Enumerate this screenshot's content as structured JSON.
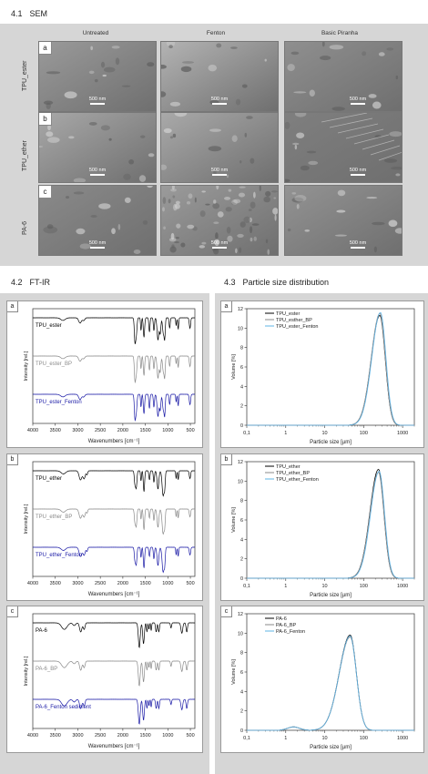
{
  "sem": {
    "title_num": "4.1",
    "title": "SEM",
    "columns": [
      "Untreated",
      "Fenton",
      "Basic Piranha"
    ],
    "rows": [
      {
        "letter": "a",
        "label": "TPU_ester"
      },
      {
        "letter": "b",
        "label": "TPU_ether"
      },
      {
        "letter": "c",
        "label": "PA-6"
      }
    ],
    "scale": "500 nm"
  },
  "ftir": {
    "title_num": "4.2",
    "title": "FT-IR",
    "ylabel": "Intensity [rel.]",
    "xlabel": "Wavenumbers [cm⁻¹]",
    "xticks": [
      "4000",
      "3500",
      "3000",
      "2500",
      "2000",
      "1500",
      "1000",
      "500"
    ],
    "panels": [
      {
        "letter": "a",
        "traces": [
          {
            "label": "TPU_ester",
            "color": "#000000"
          },
          {
            "label": "TPU_ester_BP",
            "color": "#8a8a8a"
          },
          {
            "label": "TPU_ester_Fenton",
            "color": "#1a1aa6"
          }
        ]
      },
      {
        "letter": "b",
        "traces": [
          {
            "label": "TPU_ether",
            "color": "#000000"
          },
          {
            "label": "TPU_ether_BP",
            "color": "#8a8a8a"
          },
          {
            "label": "TPU_ether_Fenton",
            "color": "#1a1aa6"
          }
        ]
      },
      {
        "letter": "c",
        "traces": [
          {
            "label": "PA-6",
            "color": "#000000"
          },
          {
            "label": "PA-6_BP",
            "color": "#8a8a8a"
          },
          {
            "label": "PA-6_Fenton sediment",
            "color": "#1a1aa6"
          }
        ]
      }
    ]
  },
  "psd": {
    "title_num": "4.3",
    "title": "Particle size distribution",
    "ylabel": "Volume [%]",
    "xlabel": "Particle size [µm]",
    "xticks": [
      "0,1",
      "1",
      "10",
      "100",
      "1000"
    ],
    "colors": {
      "base": "#000000",
      "bp": "#8a8a8a",
      "fenton": "#5fb4e6"
    }
  },
  "chart_data": [
    {
      "type": "line",
      "title": "",
      "xlabel": "Wavenumbers [cm⁻¹]",
      "ylabel": "Intensity [rel.]",
      "xlim": [
        4000,
        400
      ],
      "reversed_x": true,
      "letter": "a",
      "series": [
        {
          "name": "TPU_ester"
        },
        {
          "name": "TPU_ester_BP"
        },
        {
          "name": "TPU_ester_Fenton"
        }
      ]
    },
    {
      "type": "line",
      "title": "",
      "xlabel": "Wavenumbers [cm⁻¹]",
      "ylabel": "Intensity [rel.]",
      "xlim": [
        4000,
        400
      ],
      "reversed_x": true,
      "letter": "b",
      "series": [
        {
          "name": "TPU_ether"
        },
        {
          "name": "TPU_ether_BP"
        },
        {
          "name": "TPU_ether_Fenton"
        }
      ]
    },
    {
      "type": "line",
      "title": "",
      "xlabel": "Wavenumbers [cm⁻¹]",
      "ylabel": "Intensity [rel.]",
      "xlim": [
        4000,
        400
      ],
      "reversed_x": true,
      "letter": "c",
      "series": [
        {
          "name": "PA-6"
        },
        {
          "name": "PA-6_BP"
        },
        {
          "name": "PA-6_Fenton sediment"
        }
      ]
    },
    {
      "type": "line",
      "title": "",
      "xlabel": "Particle size [µm]",
      "ylabel": "Volume [%]",
      "xscale": "log",
      "xlim": [
        0.1,
        2000
      ],
      "ylim": [
        0,
        12
      ],
      "yticks": [
        0,
        2,
        4,
        6,
        8,
        10,
        12
      ],
      "letter": "a",
      "series": [
        {
          "name": "TPU_ester",
          "peak_x": 260,
          "peak_y": 11.3
        },
        {
          "name": "TPU_esther_BP",
          "peak_x": 260,
          "peak_y": 11.5
        },
        {
          "name": "TPU_ester_Fenton",
          "peak_x": 270,
          "peak_y": 11.6
        }
      ]
    },
    {
      "type": "line",
      "title": "",
      "xlabel": "Particle size [µm]",
      "ylabel": "Volume [%]",
      "xscale": "log",
      "xlim": [
        0.1,
        2000
      ],
      "ylim": [
        0,
        12
      ],
      "yticks": [
        0,
        2,
        4,
        6,
        8,
        10,
        12
      ],
      "letter": "b",
      "series": [
        {
          "name": "TPU_ether",
          "peak_x": 240,
          "peak_y": 11.2
        },
        {
          "name": "TPU_ether_BP",
          "peak_x": 240,
          "peak_y": 10.9
        },
        {
          "name": "TPU_ether_Fenton",
          "peak_x": 250,
          "peak_y": 11.0
        }
      ]
    },
    {
      "type": "line",
      "title": "",
      "xlabel": "Particle size [µm]",
      "ylabel": "Volume [%]",
      "xscale": "log",
      "xlim": [
        0.1,
        2000
      ],
      "ylim": [
        0,
        12
      ],
      "yticks": [
        0,
        2,
        4,
        6,
        8,
        10,
        12
      ],
      "letter": "c",
      "series": [
        {
          "name": "PA-6",
          "peak_x": 45,
          "peak_y": 9.8
        },
        {
          "name": "PA-6_BP",
          "peak_x": 45,
          "peak_y": 9.6
        },
        {
          "name": "PA-6_Fenton",
          "peak_x": 45,
          "peak_y": 9.7
        }
      ]
    }
  ]
}
